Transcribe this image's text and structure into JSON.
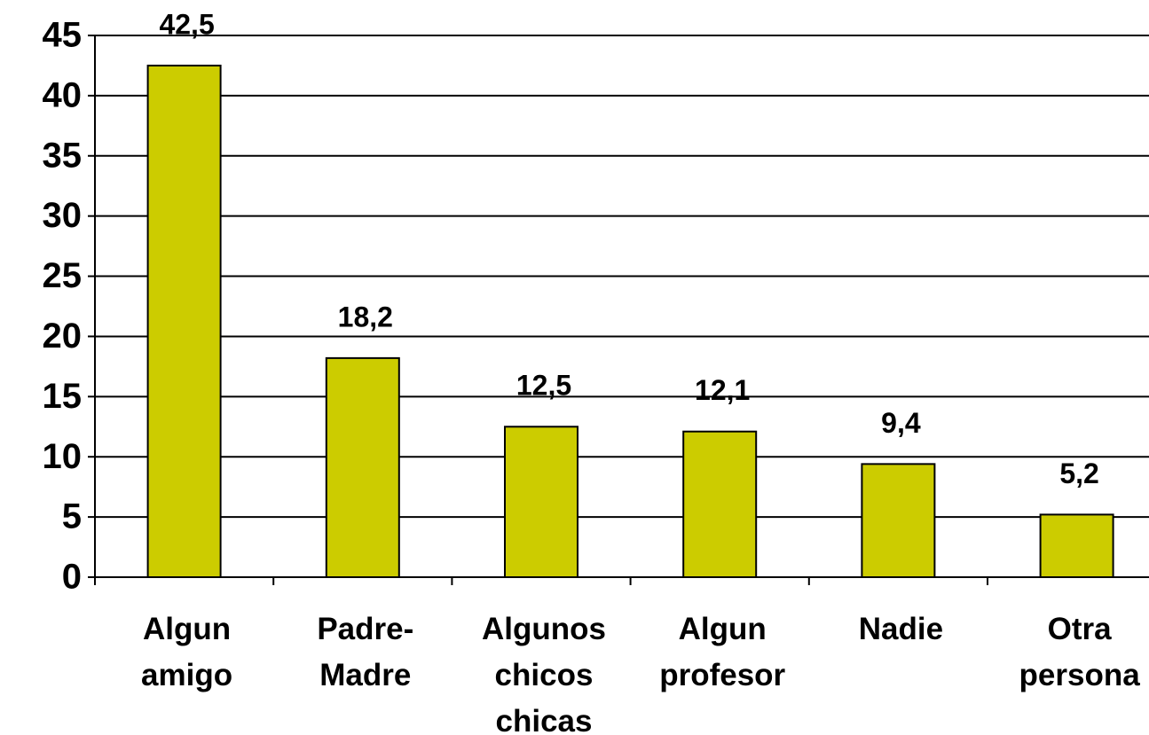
{
  "chart_data": {
    "type": "bar",
    "categories": [
      "Algun amigo",
      "Padre-Madre",
      "Algunos chicos chicas",
      "Algun profesor",
      "Nadie",
      "Otra persona"
    ],
    "values": [
      42.5,
      18.2,
      12.5,
      12.1,
      9.4,
      5.2
    ],
    "value_labels": [
      "42,5",
      "18,2",
      "12,5",
      "12,1",
      "9,4",
      "5,2"
    ],
    "color": "#cccc00",
    "ylim": [
      0,
      45
    ],
    "yticks": [
      0,
      5,
      10,
      15,
      20,
      25,
      30,
      35,
      40,
      45
    ],
    "grid": true
  }
}
